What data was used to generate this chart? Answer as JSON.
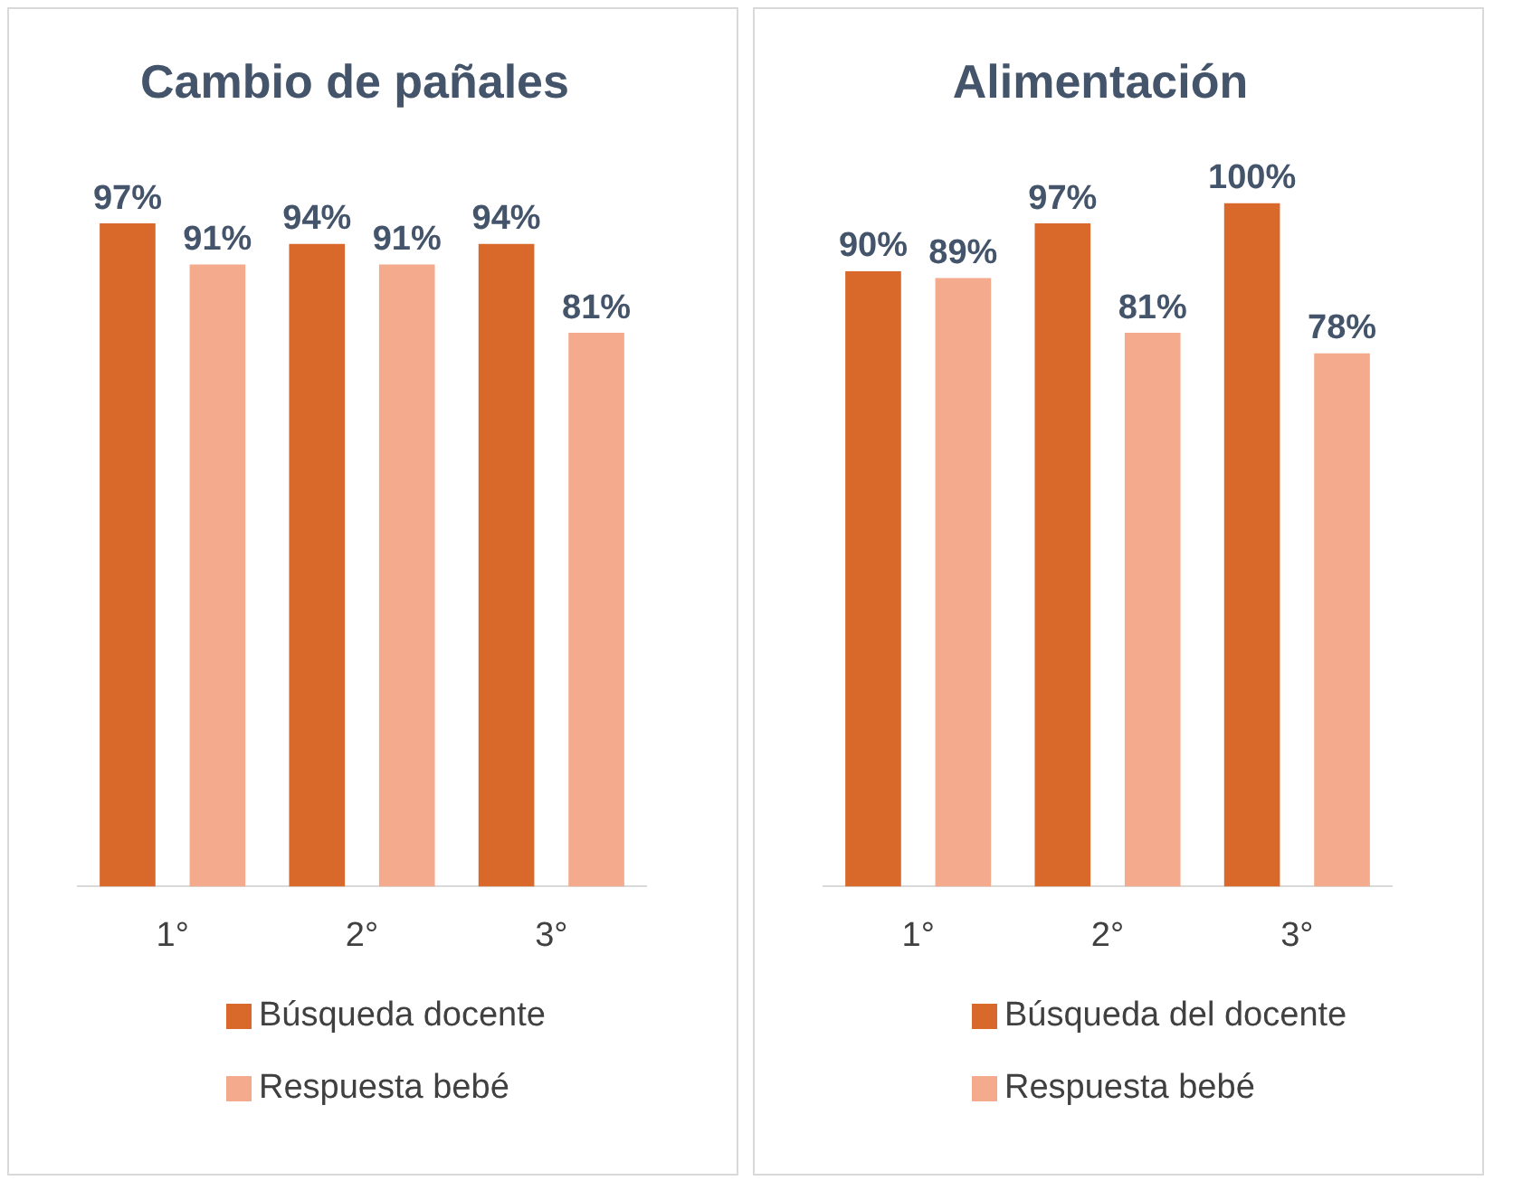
{
  "chart_data": [
    {
      "type": "bar",
      "title": "Cambio de pañales",
      "categories": [
        "1°",
        "2°",
        "3°"
      ],
      "series": [
        {
          "name": "Búsqueda docente",
          "color": "#d9692a",
          "values": [
            97,
            94,
            94
          ],
          "value_labels": [
            "97%",
            "94%",
            "94%"
          ]
        },
        {
          "name": "Respuesta bebé",
          "color": "#f4aa8c",
          "values": [
            91,
            91,
            81
          ],
          "value_labels": [
            "91%",
            "91%",
            "81%"
          ]
        }
      ],
      "legend": "bottom",
      "grid": false,
      "tick_labels": "x"
    },
    {
      "type": "bar",
      "title": "Alimentación",
      "categories": [
        "1°",
        "2°",
        "3°"
      ],
      "series": [
        {
          "name": "Búsqueda del docente",
          "color": "#d9692a",
          "values": [
            90,
            97,
            100
          ],
          "value_labels": [
            "90%",
            "97%",
            "100%"
          ]
        },
        {
          "name": "Respuesta bebé",
          "color": "#f4aa8c",
          "values": [
            89,
            81,
            78
          ],
          "value_labels": [
            "89%",
            "81%",
            "78%"
          ]
        }
      ],
      "legend": "bottom",
      "grid": false,
      "tick_labels": "x"
    }
  ]
}
